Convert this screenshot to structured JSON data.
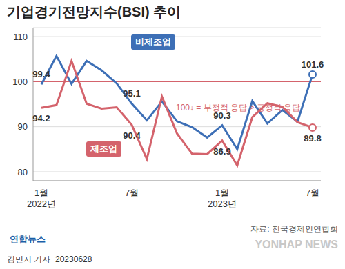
{
  "chart_data": {
    "type": "line",
    "title": "기업경기전망지수(BSI) 추이",
    "categories": [
      "1월\n2022년",
      null,
      null,
      null,
      null,
      null,
      "7월",
      null,
      null,
      null,
      null,
      null,
      "1월\n2023년",
      null,
      null,
      null,
      null,
      null,
      "7월"
    ],
    "series": [
      {
        "name": "비제조업",
        "color": "#3d6fb6",
        "values": [
          99.4,
          105.7,
          99.5,
          104.6,
          102.5,
          99.6,
          95.1,
          91.4,
          95.6,
          91.2,
          89.9,
          87.6,
          90.3,
          85.0,
          95.7,
          90.7,
          93.7,
          91.1,
          101.6
        ],
        "value_labels": [
          "99.4",
          null,
          null,
          null,
          null,
          null,
          "95.1",
          null,
          null,
          null,
          null,
          null,
          "90.3",
          null,
          null,
          null,
          null,
          null,
          "101.6"
        ],
        "marker": "last"
      },
      {
        "name": "제조업",
        "color": "#d4636c",
        "values": [
          94.2,
          94.8,
          104.6,
          95.1,
          94.0,
          94.3,
          90.4,
          82.8,
          96.7,
          88.5,
          84.0,
          83.9,
          86.9,
          81.4,
          92.1,
          95.2,
          94.4,
          91.0,
          89.8
        ],
        "value_labels": [
          "94.2",
          null,
          null,
          null,
          null,
          null,
          "90.4",
          null,
          null,
          null,
          null,
          null,
          "86.9",
          null,
          null,
          null,
          null,
          null,
          "89.8"
        ],
        "marker": "last"
      }
    ],
    "ylim": [
      78,
      112
    ],
    "yticks": [
      80,
      90,
      100,
      110
    ],
    "grid": true,
    "reference_line": 100,
    "annotations": [
      "100↓ = 부정적 응답 > 긍정적 응답"
    ],
    "source": "자료: 전국경제인연합회",
    "logo": "연합뉴스",
    "watermark": "YONHAP NEWS",
    "byline": "김민지 기자",
    "date": "20230628"
  }
}
